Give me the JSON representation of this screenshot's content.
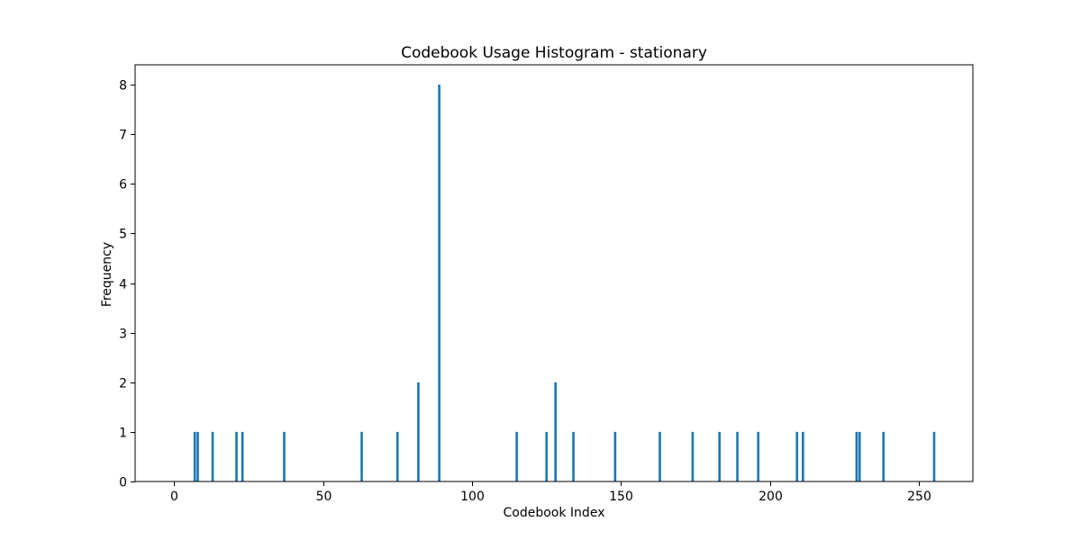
{
  "chart_data": {
    "type": "bar",
    "title": "Codebook Usage Histogram - stationary",
    "xlabel": "Codebook Index",
    "ylabel": "Frequency",
    "xlim": [
      -13,
      268
    ],
    "ylim": [
      0,
      8.4
    ],
    "xticks": [
      0,
      50,
      100,
      150,
      200,
      250
    ],
    "yticks": [
      0,
      1,
      2,
      3,
      4,
      5,
      6,
      7,
      8
    ],
    "grid": false,
    "bar_color": "#1f77b4",
    "x": [
      7,
      8,
      13,
      21,
      23,
      37,
      63,
      75,
      82,
      89,
      115,
      125,
      128,
      134,
      148,
      163,
      174,
      183,
      189,
      196,
      209,
      211,
      229,
      230,
      238,
      255
    ],
    "values": [
      1,
      1,
      1,
      1,
      1,
      1,
      1,
      1,
      2,
      8,
      1,
      1,
      2,
      1,
      1,
      1,
      1,
      1,
      1,
      1,
      1,
      1,
      1,
      1,
      1,
      1
    ]
  }
}
